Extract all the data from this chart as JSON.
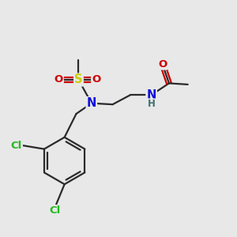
{
  "bg_color": "#e8e8e8",
  "bond_color": "#2a2a2a",
  "bond_width": 1.6,
  "atom_colors": {
    "C": "#2a2a2a",
    "N": "#1010dd",
    "O": "#cc0000",
    "S": "#cccc00",
    "Cl": "#22bb22",
    "H": "#407070"
  },
  "font_size": 9.5,
  "fig_size": [
    3.0,
    3.0
  ],
  "dpi": 100
}
